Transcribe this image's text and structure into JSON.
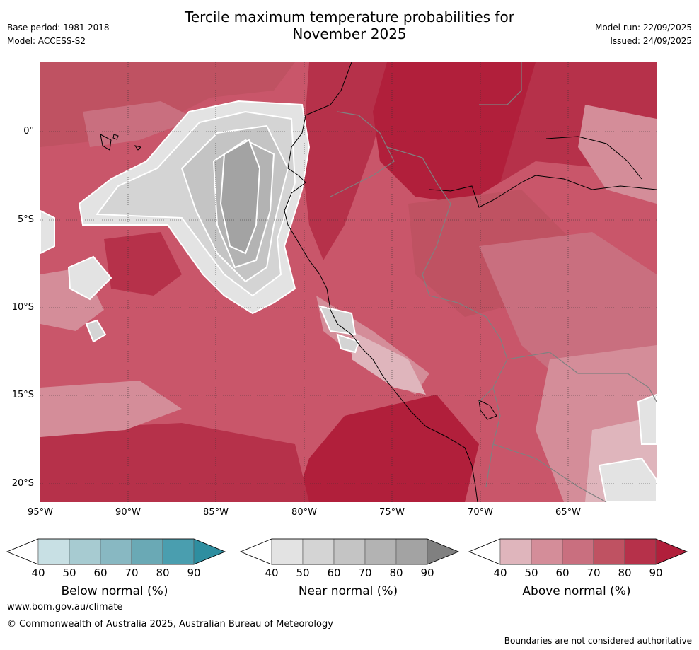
{
  "title_line1": "Tercile maximum temperature probabilities for",
  "title_line2": "November 2025",
  "base_period": "Base period: 1981-2018",
  "model": "Model: ACCESS-S2",
  "model_run": "Model run: 22/09/2025",
  "issued": "Issued: 24/09/2025",
  "map": {
    "lat_labels": [
      "0°",
      "5°S",
      "10°S",
      "15°S",
      "20°S"
    ],
    "lon_labels": [
      "95°W",
      "90°W",
      "85°W",
      "80°W",
      "75°W",
      "70°W",
      "65°W"
    ],
    "colors": {
      "ocean_bg": "#c9566a",
      "above_40": "#dfb5bc",
      "above_50": "#d48d99",
      "above_60": "#c96f7f",
      "above_70": "#bf5262",
      "above_80": "#b6314a",
      "above_90": "#b11f3b",
      "near_40": "#e3e3e3",
      "near_50": "#d4d4d4",
      "near_60": "#c4c4c4",
      "near_70": "#b3b3b3",
      "near_80": "#a3a3a3",
      "coast": "#000000",
      "border": "#808080"
    }
  },
  "colorbars": [
    {
      "name": "below",
      "label": "Below normal (%)",
      "ticks": [
        "40",
        "50",
        "60",
        "70",
        "80",
        "90"
      ],
      "colors": [
        "#ffffff",
        "#c8e0e4",
        "#a7cbd1",
        "#88b8c2",
        "#6aa9b5",
        "#4a9eaf",
        "#2e8ea0"
      ]
    },
    {
      "name": "near",
      "label": "Near normal (%)",
      "ticks": [
        "40",
        "50",
        "60",
        "70",
        "80",
        "90"
      ],
      "colors": [
        "#ffffff",
        "#e3e3e3",
        "#d4d4d4",
        "#c4c4c4",
        "#b3b3b3",
        "#a3a3a3",
        "#808080"
      ]
    },
    {
      "name": "above",
      "label": "Above normal (%)",
      "ticks": [
        "40",
        "50",
        "60",
        "70",
        "80",
        "90"
      ],
      "colors": [
        "#ffffff",
        "#dfb5bc",
        "#d48d99",
        "#c96f7f",
        "#bf5262",
        "#b6314a",
        "#b11f3b"
      ]
    }
  ],
  "footer_url": "www.bom.gov.au/climate",
  "footer_copyright": "© Commonwealth of Australia 2025, Australian Bureau of Meteorology",
  "footer_note": "Boundaries are not considered authoritative"
}
